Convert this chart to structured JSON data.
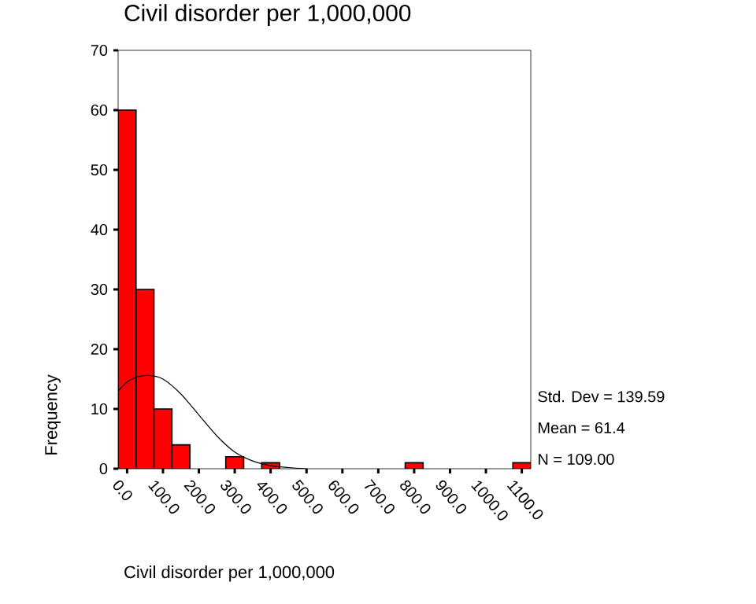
{
  "chart_data": {
    "type": "histogram",
    "title": "Civil disorder per 1,000,000",
    "xlabel": "Civil disorder per 1,000,000",
    "ylabel": "Frequency",
    "bins": [
      -25,
      25,
      75,
      125,
      175,
      225,
      275,
      325,
      375,
      425,
      475,
      525,
      575,
      625,
      675,
      725,
      775,
      825,
      875,
      925,
      975,
      1025,
      1075,
      1125
    ],
    "values": [
      60,
      30,
      10,
      4,
      0,
      0,
      2,
      0,
      1,
      0,
      0,
      0,
      0,
      0,
      0,
      0,
      1,
      0,
      0,
      0,
      0,
      0,
      1
    ],
    "color": "#ff0000",
    "series": [
      {
        "type": "line",
        "color": "#000000",
        "x": [
          -25,
          0,
          25,
          60,
          100,
          150,
          200,
          250,
          300,
          350,
          400,
          450,
          500
        ],
        "values": [
          13,
          14.5,
          15.3,
          15.6,
          15,
          12.5,
          9,
          5.5,
          2.8,
          1.3,
          0.5,
          0.2,
          0
        ]
      }
    ],
    "xlim": [
      -25,
      1125
    ],
    "ylim": [
      0,
      70
    ],
    "xticks": [
      {
        "value": 0,
        "label": "0.0"
      },
      {
        "value": 100,
        "label": "100.0"
      },
      {
        "value": 200,
        "label": "200.0"
      },
      {
        "value": 300,
        "label": "300.0"
      },
      {
        "value": 400,
        "label": "400.0"
      },
      {
        "value": 500,
        "label": "500.0"
      },
      {
        "value": 600,
        "label": "600.0"
      },
      {
        "value": 700,
        "label": "700.0"
      },
      {
        "value": 800,
        "label": "800.0"
      },
      {
        "value": 900,
        "label": "900.0"
      },
      {
        "value": 1000,
        "label": "1000.0"
      },
      {
        "value": 1100,
        "label": "1100.0"
      }
    ],
    "yticks": [
      0,
      10,
      20,
      30,
      40,
      50,
      60,
      70
    ],
    "annotations": [
      "Std. Dev = 139.59",
      "Mean = 61.4",
      "N = 109.00"
    ],
    "grid": false
  }
}
